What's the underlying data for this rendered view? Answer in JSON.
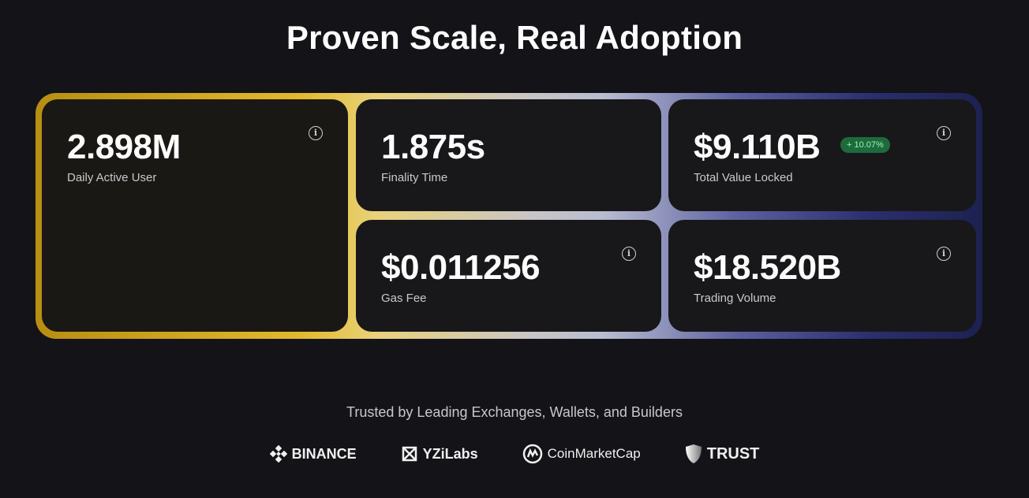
{
  "title": "Proven Scale, Real Adoption",
  "colors": {
    "accent_gold": "#e2b92c",
    "accent_navy": "#2a2f6e",
    "badge_green": "#1d6b3c"
  },
  "stats": [
    {
      "value": "2.898M",
      "label": "Daily Active User",
      "icon": "info-icon"
    },
    {
      "value": "1.875s",
      "label": "Finality Time"
    },
    {
      "value": "$9.110B",
      "label": "Total Value Locked",
      "badge": "+ 10.07%",
      "icon": "info-icon"
    },
    {
      "value": "$0.011256",
      "label": "Gas Fee",
      "icon": "info-icon"
    },
    {
      "value": "$18.520B",
      "label": "Trading Volume",
      "icon": "info-icon"
    }
  ],
  "trusted": {
    "heading": "Trusted by Leading Exchanges, Wallets, and Builders",
    "logos": [
      "BINANCE",
      "YZiLabs",
      "CoinMarketCap",
      "TRUST"
    ]
  }
}
